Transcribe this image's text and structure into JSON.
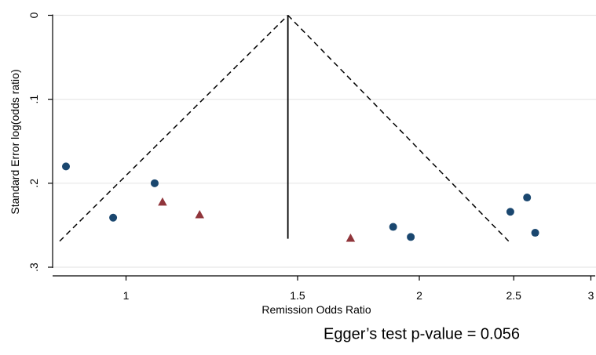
{
  "chart_data": {
    "type": "scatter",
    "title": "",
    "xlabel": "Remission Odds Ratio",
    "ylabel": "Standard Error log(odds ratio)",
    "x_scale": "log",
    "x_ticks": [
      1,
      1.5,
      2,
      2.5,
      3
    ],
    "x_tick_labels": [
      "1",
      "1.5",
      "2",
      "2.5",
      "3"
    ],
    "y_ticks": [
      0,
      0.1,
      0.2,
      0.3
    ],
    "y_tick_labels": [
      "0",
      ".1",
      ".2",
      ".3"
    ],
    "y_reversed": true,
    "xlim": [
      0.86,
      3.03
    ],
    "ylim": [
      0.3,
      -0.01
    ],
    "grid": true,
    "legend": "none",
    "pooled_estimate": 1.466,
    "funnel_lower": [
      0.858,
      0.269
    ],
    "funnel_apex": [
      1.466,
      0.0
    ],
    "funnel_upper": [
      2.47,
      0.269
    ],
    "vertical_line_bottom_se": 0.266,
    "series": [
      {
        "marker": "circle",
        "color": "#1a476f",
        "points": [
          {
            "x": 0.86,
            "y": 0.18
          },
          {
            "x": 0.97,
            "y": 0.241
          },
          {
            "x": 1.07,
            "y": 0.2
          },
          {
            "x": 1.88,
            "y": 0.252
          },
          {
            "x": 1.96,
            "y": 0.264
          },
          {
            "x": 2.48,
            "y": 0.234
          },
          {
            "x": 2.58,
            "y": 0.217
          },
          {
            "x": 2.63,
            "y": 0.259
          }
        ]
      },
      {
        "marker": "triangle",
        "color": "#90353b",
        "points": [
          {
            "x": 1.09,
            "y": 0.222
          },
          {
            "x": 1.19,
            "y": 0.237
          },
          {
            "x": 1.7,
            "y": 0.265
          }
        ]
      }
    ]
  },
  "annotation": {
    "egger_text": "Egger’s test p-value = 0.056"
  }
}
